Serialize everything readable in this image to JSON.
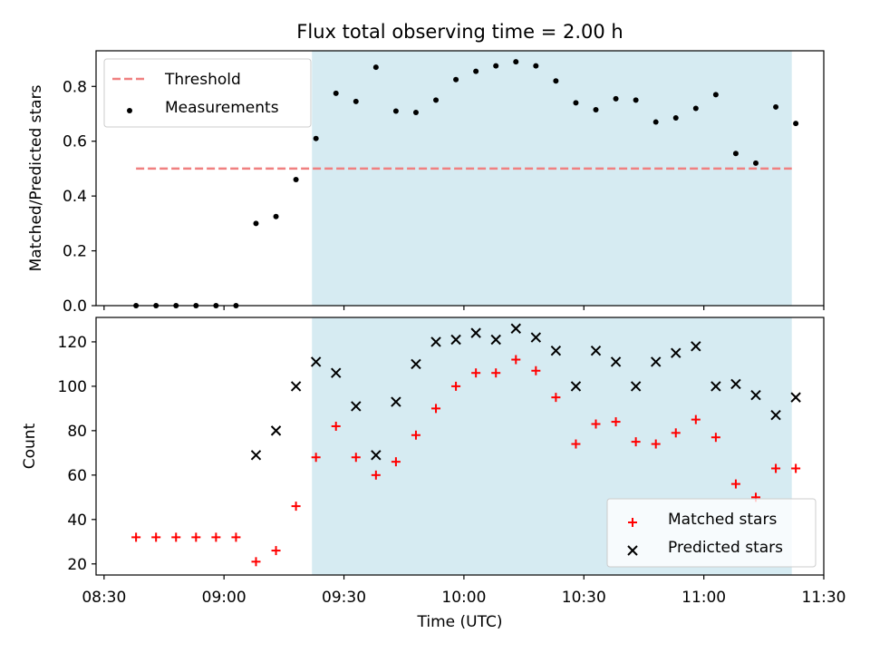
{
  "chart_data": [
    {
      "type": "scatter",
      "title": "Flux total observing time = 2.00 h",
      "ylabel": "Matched/Predicted stars",
      "xlabel": "",
      "xlim": [
        "08:28",
        "11:30"
      ],
      "ylim": [
        0,
        0.93
      ],
      "x_ticks": [
        "08:30",
        "09:00",
        "09:30",
        "10:00",
        "10:30",
        "11:00",
        "11:30"
      ],
      "y_ticks": [
        "0.0",
        "0.2",
        "0.4",
        "0.6",
        "0.8"
      ],
      "y_tick_values": [
        0,
        0.2,
        0.4,
        0.6,
        0.8
      ],
      "shaded_region": {
        "x_start": "09:22",
        "x_end": "11:22",
        "color": "#add8e6"
      },
      "legend_position": "top-left",
      "threshold": {
        "name": "Threshold",
        "value": 0.5,
        "x_start": "08:38",
        "x_end": "11:22",
        "color": "#f08080"
      },
      "series": [
        {
          "name": "Measurements",
          "marker": "dot",
          "color": "#000000",
          "x": [
            "08:38",
            "08:43",
            "08:48",
            "08:53",
            "08:58",
            "09:03",
            "09:08",
            "09:13",
            "09:18",
            "09:23",
            "09:28",
            "09:33",
            "09:38",
            "09:43",
            "09:48",
            "09:53",
            "09:58",
            "10:03",
            "10:08",
            "10:13",
            "10:18",
            "10:23",
            "10:28",
            "10:33",
            "10:38",
            "10:43",
            "10:48",
            "10:53",
            "10:58",
            "11:03",
            "11:08",
            "11:13",
            "11:18",
            "11:23"
          ],
          "y": [
            0,
            0,
            0,
            0,
            0,
            0,
            0.3,
            0.325,
            0.46,
            0.61,
            0.775,
            0.745,
            0.87,
            0.71,
            0.705,
            0.75,
            0.825,
            0.855,
            0.875,
            0.89,
            0.875,
            0.82,
            0.74,
            0.715,
            0.755,
            0.75,
            0.67,
            0.685,
            0.72,
            0.77,
            0.555,
            0.52,
            0.725,
            0.665
          ]
        }
      ]
    },
    {
      "type": "scatter",
      "title": "",
      "ylabel": "Count",
      "xlabel": "Time (UTC)",
      "xlim": [
        "08:28",
        "11:30"
      ],
      "ylim": [
        15,
        131
      ],
      "x_ticks": [
        "08:30",
        "09:00",
        "09:30",
        "10:00",
        "10:30",
        "11:00",
        "11:30"
      ],
      "y_ticks": [
        "20",
        "40",
        "60",
        "80",
        "100",
        "120"
      ],
      "y_tick_values": [
        20,
        40,
        60,
        80,
        100,
        120
      ],
      "shaded_region": {
        "x_start": "09:22",
        "x_end": "11:22",
        "color": "#add8e6"
      },
      "legend_position": "bottom-right",
      "series": [
        {
          "name": "Matched stars",
          "marker": "plus",
          "color": "#ff0000",
          "x": [
            "08:38",
            "08:43",
            "08:48",
            "08:53",
            "08:58",
            "09:03",
            "09:08",
            "09:13",
            "09:18",
            "09:23",
            "09:28",
            "09:33",
            "09:38",
            "09:43",
            "09:48",
            "09:53",
            "09:58",
            "10:03",
            "10:08",
            "10:13",
            "10:18",
            "10:23",
            "10:28",
            "10:33",
            "10:38",
            "10:43",
            "10:48",
            "10:53",
            "10:58",
            "11:03",
            "11:08",
            "11:13",
            "11:18",
            "11:23"
          ],
          "y": [
            32,
            32,
            32,
            32,
            32,
            32,
            21,
            26,
            46,
            68,
            82,
            68,
            60,
            66,
            78,
            90,
            100,
            106,
            106,
            112,
            107,
            95,
            74,
            83,
            84,
            75,
            74,
            79,
            85,
            77,
            56,
            50,
            63,
            63
          ]
        },
        {
          "name": "Predicted stars",
          "marker": "x",
          "color": "#000000",
          "x": [
            "09:08",
            "09:13",
            "09:18",
            "09:23",
            "09:28",
            "09:33",
            "09:38",
            "09:43",
            "09:48",
            "09:53",
            "09:58",
            "10:03",
            "10:08",
            "10:13",
            "10:18",
            "10:23",
            "10:28",
            "10:33",
            "10:38",
            "10:43",
            "10:48",
            "10:53",
            "10:58",
            "11:03",
            "11:08",
            "11:13",
            "11:18",
            "11:23"
          ],
          "y": [
            69,
            80,
            100,
            111,
            106,
            91,
            69,
            93,
            110,
            120,
            121,
            124,
            121,
            126,
            122,
            116,
            100,
            116,
            111,
            100,
            111,
            115,
            118,
            100,
            101,
            96,
            87,
            95
          ]
        }
      ]
    }
  ]
}
